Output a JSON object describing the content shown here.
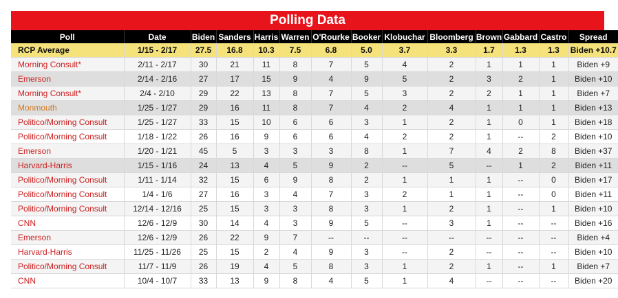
{
  "title": "Polling Data",
  "columns": [
    "Poll",
    "Date",
    "Biden",
    "Sanders",
    "Harris",
    "Warren",
    "O'Rourke",
    "Booker",
    "Klobuchar",
    "Bloomberg",
    "Brown",
    "Gabbard",
    "Castro",
    "Spread"
  ],
  "average": [
    "RCP Average",
    "1/15 - 2/17",
    "27.5",
    "16.8",
    "10.3",
    "7.5",
    "6.8",
    "5.0",
    "3.7",
    "3.3",
    "1.7",
    "1.3",
    "1.3",
    "Biden +10.7"
  ],
  "rows": [
    {
      "style": "odd",
      "pollColor": "red",
      "cells": [
        "Morning Consult*",
        "2/11 - 2/17",
        "30",
        "21",
        "11",
        "8",
        "7",
        "5",
        "4",
        "2",
        "1",
        "1",
        "1",
        "Biden +9"
      ]
    },
    {
      "style": "gray",
      "pollColor": "red",
      "cells": [
        "Emerson",
        "2/14 - 2/16",
        "27",
        "17",
        "15",
        "9",
        "4",
        "9",
        "5",
        "2",
        "3",
        "2",
        "1",
        "Biden +10"
      ]
    },
    {
      "style": "odd",
      "pollColor": "red",
      "cells": [
        "Morning Consult*",
        "2/4 - 2/10",
        "29",
        "22",
        "13",
        "8",
        "7",
        "5",
        "3",
        "2",
        "2",
        "1",
        "1",
        "Biden +7"
      ]
    },
    {
      "style": "gray",
      "pollColor": "orange",
      "cells": [
        "Monmouth",
        "1/25 - 1/27",
        "29",
        "16",
        "11",
        "8",
        "7",
        "4",
        "2",
        "4",
        "1",
        "1",
        "1",
        "Biden +13"
      ]
    },
    {
      "style": "odd",
      "pollColor": "red",
      "cells": [
        "Politico/Morning Consult",
        "1/25 - 1/27",
        "33",
        "15",
        "10",
        "6",
        "6",
        "3",
        "1",
        "2",
        "1",
        "0",
        "1",
        "Biden +18"
      ]
    },
    {
      "style": "even",
      "pollColor": "red",
      "cells": [
        "Politico/Morning Consult",
        "1/18 - 1/22",
        "26",
        "16",
        "9",
        "6",
        "6",
        "4",
        "2",
        "2",
        "1",
        "--",
        "2",
        "Biden +10"
      ]
    },
    {
      "style": "odd",
      "pollColor": "red",
      "cells": [
        "Emerson",
        "1/20 - 1/21",
        "45",
        "5",
        "3",
        "3",
        "3",
        "8",
        "1",
        "7",
        "4",
        "2",
        "8",
        "Biden +37"
      ]
    },
    {
      "style": "gray",
      "pollColor": "red",
      "cells": [
        "Harvard-Harris",
        "1/15 - 1/16",
        "24",
        "13",
        "4",
        "5",
        "9",
        "2",
        "--",
        "5",
        "--",
        "1",
        "2",
        "Biden +11"
      ]
    },
    {
      "style": "odd",
      "pollColor": "red",
      "cells": [
        "Politico/Morning Consult",
        "1/11 - 1/14",
        "32",
        "15",
        "6",
        "9",
        "8",
        "2",
        "1",
        "1",
        "1",
        "--",
        "0",
        "Biden +17"
      ]
    },
    {
      "style": "even",
      "pollColor": "red",
      "cells": [
        "Politico/Morning Consult",
        "1/4 - 1/6",
        "27",
        "16",
        "3",
        "4",
        "7",
        "3",
        "2",
        "1",
        "1",
        "--",
        "0",
        "Biden +11"
      ]
    },
    {
      "style": "odd",
      "pollColor": "red",
      "cells": [
        "Politico/Morning Consult",
        "12/14 - 12/16",
        "25",
        "15",
        "3",
        "3",
        "8",
        "3",
        "1",
        "2",
        "1",
        "--",
        "1",
        "Biden +10"
      ]
    },
    {
      "style": "even",
      "pollColor": "red",
      "cells": [
        "CNN",
        "12/6 - 12/9",
        "30",
        "14",
        "4",
        "3",
        "9",
        "5",
        "--",
        "3",
        "1",
        "--",
        "--",
        "Biden +16"
      ]
    },
    {
      "style": "odd",
      "pollColor": "red",
      "cells": [
        "Emerson",
        "12/6 - 12/9",
        "26",
        "22",
        "9",
        "7",
        "--",
        "--",
        "--",
        "--",
        "--",
        "--",
        "--",
        "Biden +4"
      ]
    },
    {
      "style": "even",
      "pollColor": "red",
      "cells": [
        "Harvard-Harris",
        "11/25 - 11/26",
        "25",
        "15",
        "2",
        "4",
        "9",
        "3",
        "--",
        "2",
        "--",
        "--",
        "--",
        "Biden +10"
      ]
    },
    {
      "style": "odd",
      "pollColor": "red",
      "cells": [
        "Politico/Morning Consult",
        "11/7 - 11/9",
        "26",
        "19",
        "4",
        "5",
        "8",
        "3",
        "1",
        "2",
        "1",
        "--",
        "1",
        "Biden +7"
      ]
    },
    {
      "style": "even",
      "pollColor": "red",
      "cells": [
        "CNN",
        "10/4 - 10/7",
        "33",
        "13",
        "9",
        "8",
        "4",
        "5",
        "1",
        "4",
        "--",
        "--",
        "--",
        "Biden +20"
      ]
    }
  ],
  "colors": {
    "title_bg": "#e8141c",
    "header_bg": "#000000",
    "avg_bg": "#f5e27a",
    "poll_red": "#cc1f1f",
    "poll_orange": "#d4781d"
  }
}
